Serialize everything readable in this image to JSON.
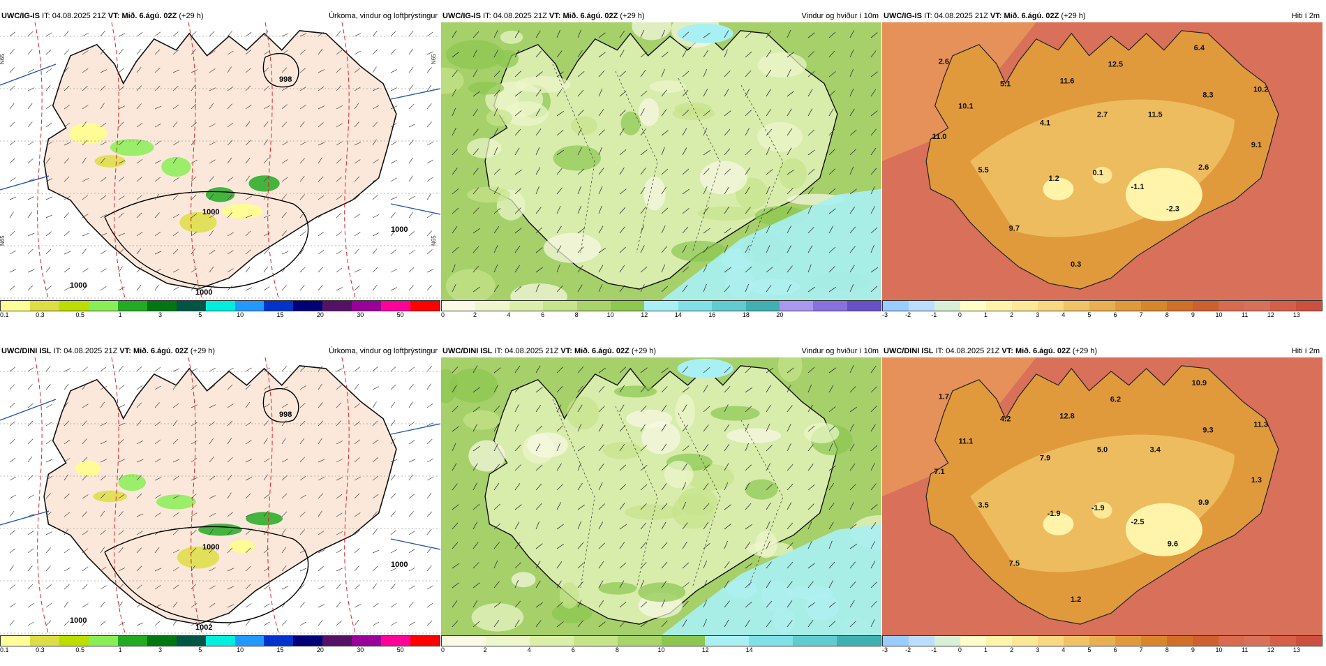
{
  "panels": [
    {
      "id": "p1",
      "model": "UWC/IG-IS",
      "it_label": "IT:",
      "it": "04.08.2025 21Z",
      "vt_label": "VT:",
      "vt": "Mið. 6.ágú. 02Z",
      "lead": "(+29 h)",
      "title": "Úrkoma, vindur og loftþrýstingur",
      "type": "precip",
      "pressure": [
        "998",
        "1000",
        "1000",
        "1000",
        "1000"
      ],
      "axis": [
        "N65",
        "N65",
        "N65",
        "N65"
      ]
    },
    {
      "id": "p2",
      "model": "UWC/IG-IS",
      "it_label": "IT:",
      "it": "04.08.2025 21Z",
      "vt_label": "VT:",
      "vt": "Mið. 6.ágú. 02Z",
      "lead": "(+29 h)",
      "title": "Vindur og hviður í 10m",
      "type": "wind"
    },
    {
      "id": "p3",
      "model": "UWC/IG-IS",
      "it_label": "IT:",
      "it": "04.08.2025 21Z",
      "vt_label": "VT:",
      "vt": "Mið. 6.ágú. 02Z",
      "lead": "(+29 h)",
      "title": "Hiti í 2m",
      "type": "temp",
      "temps": [
        "2.6",
        "5.1",
        "11.6",
        "12.5",
        "6.4",
        "10.2",
        "10.1",
        "4.1",
        "2.7",
        "11.5",
        "8.3",
        "11.0",
        "9.1",
        "5.5",
        "1.2",
        "0.1",
        "-1.1",
        "2.6",
        "-2.3",
        "9.7",
        "0.3"
      ]
    },
    {
      "id": "p4",
      "model": "UWC/DINI ISL",
      "it_label": "IT:",
      "it": "04.08.2025 21Z",
      "vt_label": "VT:",
      "vt": "Mið. 6.ágú. 02Z",
      "lead": "(+29 h)",
      "title": "Úrkoma, vindur og loftþrýstingur",
      "type": "precip",
      "pressure": [
        "998",
        "1000",
        "1000",
        "1000",
        "1002"
      ]
    },
    {
      "id": "p5",
      "model": "UWC/DINI ISL",
      "it_label": "IT:",
      "it": "04.08.2025 21Z",
      "vt_label": "VT:",
      "vt": "Mið. 6.ágú. 02Z",
      "lead": "(+29 h)",
      "title": "Vindur og hviður í 10m",
      "type": "wind"
    },
    {
      "id": "p6",
      "model": "UWC/DINI ISL",
      "it_label": "IT:",
      "it": "04.08.2025 21Z",
      "vt_label": "VT:",
      "vt": "Mið. 6.ágú. 02Z",
      "lead": "(+29 h)",
      "title": "Hiti í 2m",
      "type": "temp",
      "temps": [
        "1.7",
        "4.2",
        "12.8",
        "6.2",
        "10.9",
        "11.3",
        "11.1",
        "7.9",
        "5.0",
        "3.4",
        "9.3",
        "7.1",
        "1.3",
        "3.5",
        "-1.9",
        "-1.9",
        "-2.5",
        "9.9",
        "9.6",
        "7.5",
        "1.2"
      ]
    }
  ],
  "colorbars": {
    "precip": {
      "colors": [
        "#ffff99",
        "#dddd44",
        "#bbdd00",
        "#88ee55",
        "#22aa22",
        "#007711",
        "#005544",
        "#00eedd",
        "#2299ff",
        "#0033cc",
        "#000077",
        "#551166",
        "#990099",
        "#ff0099",
        "#ff0000"
      ],
      "labels": [
        "0.1",
        "0.3",
        "0.5",
        "1",
        "3",
        "5",
        "10",
        "15",
        "20",
        "30",
        "50"
      ]
    },
    "wind_top": {
      "colors": [
        "#fafae6",
        "#eef6cc",
        "#dcefaa",
        "#c6e48a",
        "#a8d46a",
        "#8cc850",
        "#a8f0f4",
        "#80e0e8",
        "#60ccd0",
        "#40b0b0",
        "#a898f0",
        "#8870e0",
        "#6850c8"
      ],
      "labels": [
        "0",
        "2",
        "4",
        "6",
        "8",
        "10",
        "12",
        "14",
        "16",
        "18",
        "20"
      ]
    },
    "wind_bottom": {
      "colors": [
        "#fafae6",
        "#eef6cc",
        "#dcefaa",
        "#c6e48a",
        "#a8d46a",
        "#8cc850",
        "#a8f0f4",
        "#80e0e8",
        "#60ccd0",
        "#40b0b0"
      ],
      "labels": [
        "0",
        "2",
        "4",
        "6",
        "8",
        "10",
        "12",
        "14"
      ]
    },
    "temp": {
      "colors": [
        "#99ccff",
        "#bbddff",
        "#d8f0d8",
        "#ffffc8",
        "#fff4aa",
        "#fde898",
        "#f8d880",
        "#f0c466",
        "#e8b050",
        "#e09a3c",
        "#d8862c",
        "#d07028",
        "#cc6030",
        "#d86a50",
        "#d8705a",
        "#d4604a",
        "#cc5040"
      ],
      "labels": [
        "-3",
        "-2",
        "-1",
        "0",
        "1",
        "2",
        "3",
        "4",
        "5",
        "6",
        "7",
        "8",
        "9",
        "10",
        "11",
        "12",
        "13"
      ]
    }
  }
}
